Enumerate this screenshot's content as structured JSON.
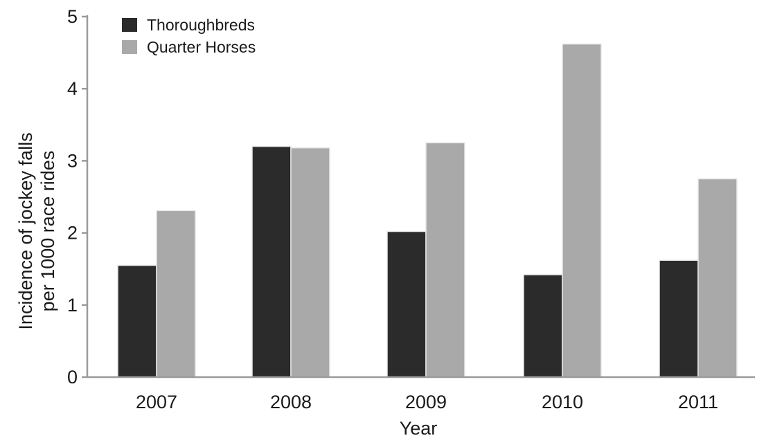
{
  "chart_data": {
    "type": "bar",
    "categories": [
      "2007",
      "2008",
      "2009",
      "2010",
      "2011"
    ],
    "series": [
      {
        "name": "Thoroughbreds",
        "color": "#2b2b2b",
        "values": [
          1.55,
          3.2,
          2.02,
          1.42,
          1.62
        ]
      },
      {
        "name": "Quarter Horses",
        "color": "#a9a9a9",
        "values": [
          2.31,
          3.18,
          3.25,
          4.62,
          2.75
        ]
      }
    ],
    "xlabel": "Year",
    "ylabel_lines": [
      "Incidence of jockey falls",
      "per 1000 race rides"
    ],
    "ylim": [
      0,
      5
    ],
    "yticks": [
      0,
      1,
      2,
      3,
      4,
      5
    ],
    "grid": false,
    "legend_position": "top-left"
  }
}
